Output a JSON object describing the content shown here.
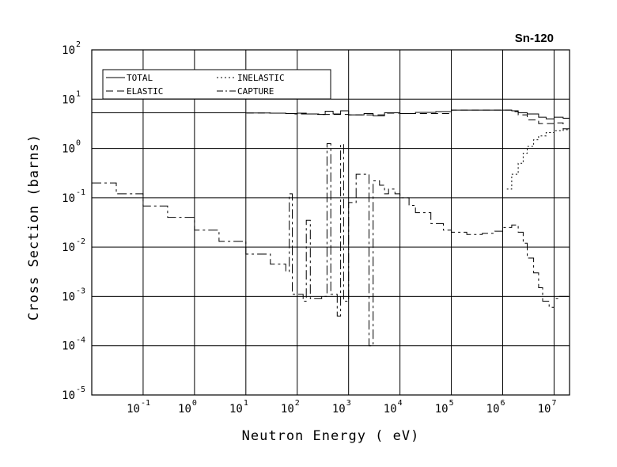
{
  "chart_data": {
    "type": "line",
    "title": "Sn-120",
    "xlabel": "Neutron Energy ( eV)",
    "ylabel": "Cross Section (barns)",
    "xscale": "log",
    "yscale": "log",
    "xlim": [
      0.01,
      20000000
    ],
    "ylim": [
      1e-05,
      100
    ],
    "grid": true,
    "legend_placement": "top-left",
    "x_ticks": [
      {
        "base": "10",
        "exp": "-1"
      },
      {
        "base": "10",
        "exp": "0"
      },
      {
        "base": "10",
        "exp": "1"
      },
      {
        "base": "10",
        "exp": "2"
      },
      {
        "base": "10",
        "exp": "3"
      },
      {
        "base": "10",
        "exp": "4"
      },
      {
        "base": "10",
        "exp": "5"
      },
      {
        "base": "10",
        "exp": "6"
      },
      {
        "base": "10",
        "exp": "7"
      }
    ],
    "y_ticks": [
      {
        "base": "10",
        "exp": "-5"
      },
      {
        "base": "10",
        "exp": "-4"
      },
      {
        "base": "10",
        "exp": "-3"
      },
      {
        "base": "10",
        "exp": "-2"
      },
      {
        "base": "10",
        "exp": "-1"
      },
      {
        "base": "10",
        "exp": "0"
      },
      {
        "base": "10",
        "exp": "1"
      },
      {
        "base": "10",
        "exp": "2"
      }
    ],
    "series": [
      {
        "name": "TOTAL",
        "dash": "",
        "points": [
          [
            0.01,
            5.3
          ],
          [
            0.1,
            5.3
          ],
          [
            1,
            5.3
          ],
          [
            10,
            5.25
          ],
          [
            30,
            5.2
          ],
          [
            60,
            5.1
          ],
          [
            90,
            5.0
          ],
          [
            100,
            5.2
          ],
          [
            150,
            5.0
          ],
          [
            250,
            4.9
          ],
          [
            350,
            5.7
          ],
          [
            500,
            5.0
          ],
          [
            700,
            5.8
          ],
          [
            1000,
            4.8
          ],
          [
            2000,
            5.1
          ],
          [
            3000,
            4.6
          ],
          [
            5000,
            5.3
          ],
          [
            10000,
            5.1
          ],
          [
            20000,
            5.4
          ],
          [
            50000,
            5.6
          ],
          [
            100000,
            6.0
          ],
          [
            300000,
            6.0
          ],
          [
            1000000,
            6.0
          ],
          [
            1500000,
            5.8
          ],
          [
            2000000,
            5.3
          ],
          [
            3000000,
            5.0
          ],
          [
            5000000,
            4.3
          ],
          [
            7000000,
            4.0
          ],
          [
            10000000,
            4.3
          ],
          [
            15000000,
            4.1
          ],
          [
            20000000,
            3.8
          ]
        ]
      },
      {
        "name": "ELASTIC",
        "dash": "9,5",
        "points": [
          [
            0.01,
            5.3
          ],
          [
            0.1,
            5.3
          ],
          [
            1,
            5.3
          ],
          [
            10,
            5.25
          ],
          [
            30,
            5.2
          ],
          [
            60,
            5.1
          ],
          [
            100,
            5.0
          ],
          [
            300,
            4.9
          ],
          [
            1000,
            4.8
          ],
          [
            5000,
            5.2
          ],
          [
            10000,
            5.1
          ],
          [
            100000,
            6.0
          ],
          [
            1000000,
            6.0
          ],
          [
            1500000,
            5.6
          ],
          [
            2000000,
            4.8
          ],
          [
            3000000,
            3.8
          ],
          [
            5000000,
            3.2
          ],
          [
            8000000,
            3.2
          ],
          [
            10000000,
            3.3
          ],
          [
            15000000,
            2.5
          ],
          [
            20000000,
            2.0
          ]
        ]
      },
      {
        "name": "INELASTIC",
        "dash": "2,3",
        "points": [
          [
            1200000,
            0.15
          ],
          [
            1500000,
            0.3
          ],
          [
            2000000,
            0.5
          ],
          [
            2500000,
            0.8
          ],
          [
            3000000,
            1.1
          ],
          [
            4000000,
            1.5
          ],
          [
            5000000,
            1.8
          ],
          [
            7000000,
            2.1
          ],
          [
            10000000,
            2.3
          ],
          [
            15000000,
            2.4
          ],
          [
            20000000,
            2.5
          ]
        ]
      },
      {
        "name": "CAPTURE",
        "dash": "12,4,3,4",
        "points": [
          [
            0.01,
            0.2
          ],
          [
            0.03,
            0.12
          ],
          [
            0.1,
            0.068
          ],
          [
            0.3,
            0.04
          ],
          [
            1,
            0.022
          ],
          [
            3,
            0.013
          ],
          [
            10,
            0.0072
          ],
          [
            30,
            0.0045
          ],
          [
            60,
            0.0032
          ],
          [
            70,
            0.12
          ],
          [
            80,
            0.0011
          ],
          [
            130,
            0.0008
          ],
          [
            150,
            0.035
          ],
          [
            180,
            0.0009
          ],
          [
            300,
            0.001
          ],
          [
            380,
            1.25
          ],
          [
            450,
            0.0011
          ],
          [
            600,
            0.0004
          ],
          [
            700,
            1.2
          ],
          [
            800,
            0.0008
          ],
          [
            1000,
            0.08
          ],
          [
            1400,
            0.3
          ],
          [
            2000,
            0.3
          ],
          [
            2500,
            0.0001
          ],
          [
            3000,
            0.22
          ],
          [
            4000,
            0.18
          ],
          [
            5000,
            0.12
          ],
          [
            6000,
            0.15
          ],
          [
            8000,
            0.12
          ],
          [
            10000,
            0.1
          ],
          [
            15000,
            0.07
          ],
          [
            20000,
            0.05
          ],
          [
            40000,
            0.03
          ],
          [
            70000,
            0.022
          ],
          [
            100000,
            0.02
          ],
          [
            200000,
            0.018
          ],
          [
            400000,
            0.019
          ],
          [
            700000,
            0.021
          ],
          [
            1000000,
            0.025
          ],
          [
            1500000,
            0.028
          ],
          [
            2000000,
            0.02
          ],
          [
            2500000,
            0.012
          ],
          [
            3000000,
            0.006
          ],
          [
            4000000,
            0.003
          ],
          [
            5000000,
            0.0015
          ],
          [
            6000000,
            0.0008
          ],
          [
            8000000,
            0.0006
          ],
          [
            10000000,
            0.0009
          ],
          [
            12000000,
            0.001
          ],
          [
            20000000,
            0.001
          ]
        ]
      }
    ]
  }
}
